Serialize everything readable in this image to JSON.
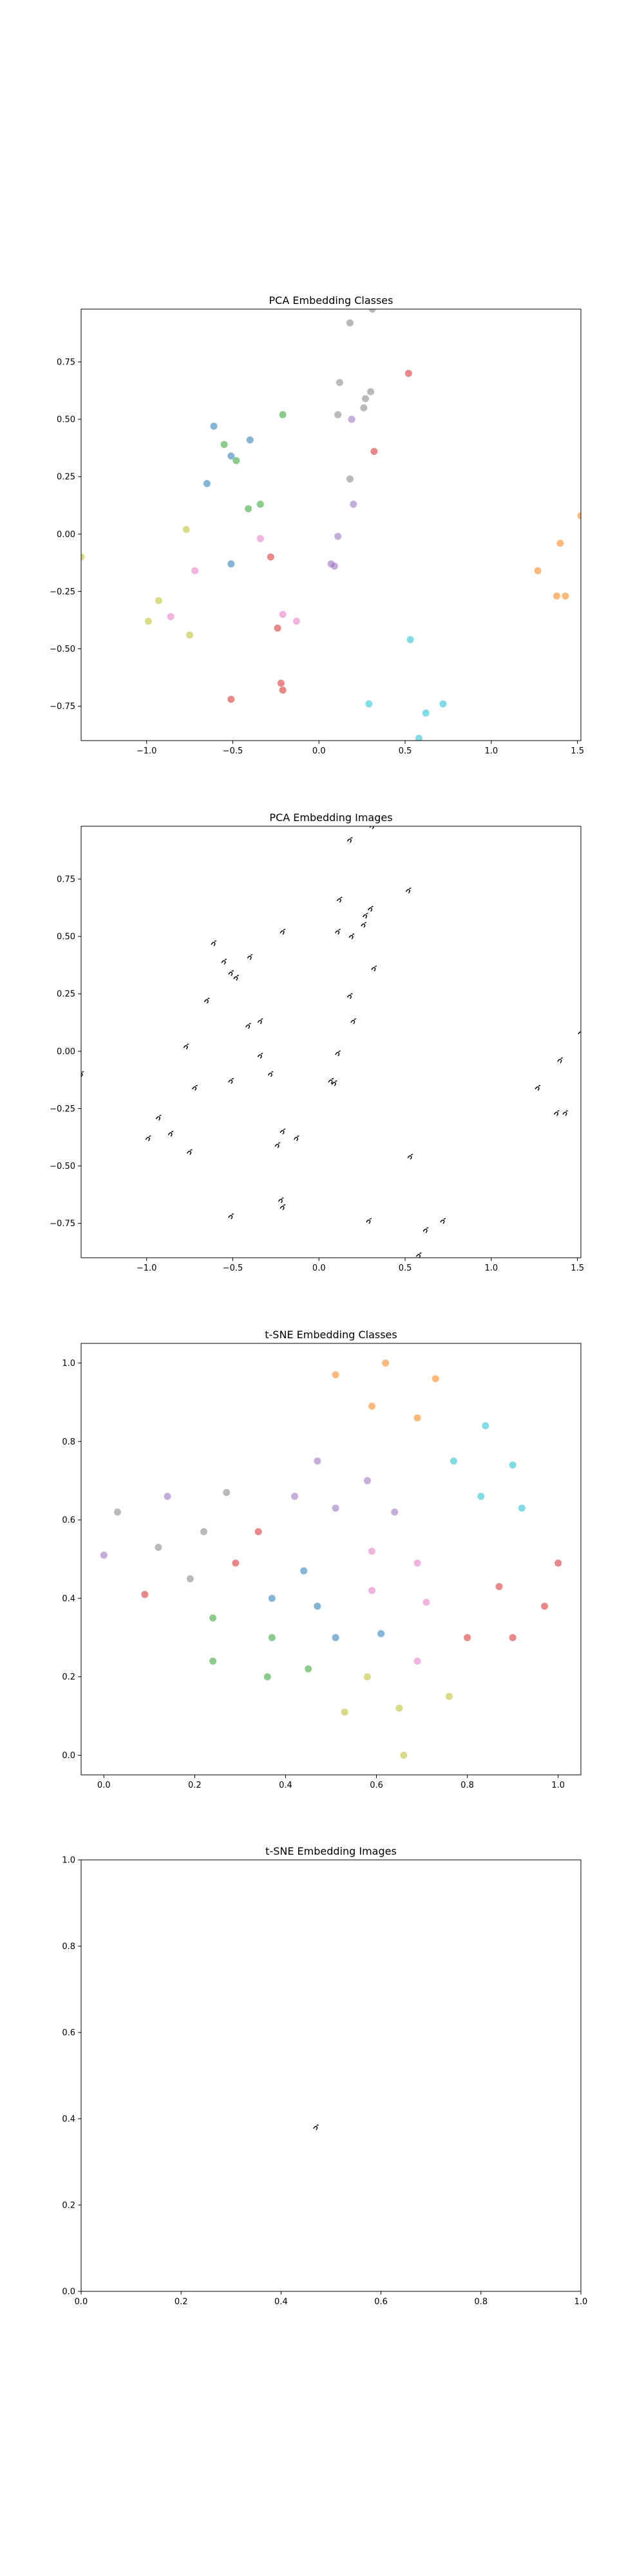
{
  "colors": [
    "#1f77b4",
    "#ff7f0e",
    "#2ca02c",
    "#d62728",
    "#9467bd",
    "#8c564b",
    "#e377c2",
    "#7f7f7f",
    "#bcbd22",
    "#17becf"
  ],
  "chart_data": [
    {
      "type": "scatter",
      "title": "PCA Embedding Classes",
      "xlim": [
        -1.38,
        1.52
      ],
      "ylim": [
        -0.9,
        0.98
      ],
      "xticks": [
        {
          "v": -1.0,
          "label": "−1.0"
        },
        {
          "v": -0.5,
          "label": "−0.5"
        },
        {
          "v": 0.0,
          "label": "0.0"
        },
        {
          "v": 0.5,
          "label": "0.5"
        },
        {
          "v": 1.0,
          "label": "1.0"
        },
        {
          "v": 1.5,
          "label": "1.5"
        }
      ],
      "yticks": [
        {
          "v": -0.75,
          "label": "−0.75"
        },
        {
          "v": -0.5,
          "label": "−0.50"
        },
        {
          "v": -0.25,
          "label": "−0.25"
        },
        {
          "v": 0.0,
          "label": "0.00"
        },
        {
          "v": 0.25,
          "label": "0.25"
        },
        {
          "v": 0.5,
          "label": "0.50"
        },
        {
          "v": 0.75,
          "label": "0.75"
        }
      ],
      "points": [
        {
          "x": 0.18,
          "y": 0.92,
          "c": 7
        },
        {
          "x": 0.31,
          "y": 0.98,
          "c": 7
        },
        {
          "x": 0.12,
          "y": 0.66,
          "c": 7
        },
        {
          "x": 0.52,
          "y": 0.7,
          "c": 3
        },
        {
          "x": 0.3,
          "y": 0.62,
          "c": 7
        },
        {
          "x": 0.27,
          "y": 0.59,
          "c": 7
        },
        {
          "x": 0.26,
          "y": 0.55,
          "c": 7
        },
        {
          "x": 0.11,
          "y": 0.52,
          "c": 7
        },
        {
          "x": 0.19,
          "y": 0.5,
          "c": 4
        },
        {
          "x": -0.21,
          "y": 0.52,
          "c": 2
        },
        {
          "x": -0.61,
          "y": 0.47,
          "c": 0
        },
        {
          "x": -0.4,
          "y": 0.41,
          "c": 0
        },
        {
          "x": -0.55,
          "y": 0.39,
          "c": 2
        },
        {
          "x": -0.51,
          "y": 0.34,
          "c": 0
        },
        {
          "x": -0.48,
          "y": 0.32,
          "c": 2
        },
        {
          "x": 0.32,
          "y": 0.36,
          "c": 3
        },
        {
          "x": 0.18,
          "y": 0.24,
          "c": 7
        },
        {
          "x": -0.65,
          "y": 0.22,
          "c": 0
        },
        {
          "x": -0.41,
          "y": 0.11,
          "c": 2
        },
        {
          "x": -0.34,
          "y": 0.13,
          "c": 2
        },
        {
          "x": 0.2,
          "y": 0.13,
          "c": 4
        },
        {
          "x": -0.77,
          "y": 0.02,
          "c": 8
        },
        {
          "x": -0.34,
          "y": -0.02,
          "c": 6
        },
        {
          "x": 0.11,
          "y": -0.01,
          "c": 4
        },
        {
          "x": -1.38,
          "y": -0.1,
          "c": 8
        },
        {
          "x": -0.51,
          "y": -0.13,
          "c": 0
        },
        {
          "x": -0.28,
          "y": -0.1,
          "c": 3
        },
        {
          "x": 0.07,
          "y": -0.13,
          "c": 4
        },
        {
          "x": 0.09,
          "y": -0.14,
          "c": 4
        },
        {
          "x": -0.72,
          "y": -0.16,
          "c": 6
        },
        {
          "x": -0.13,
          "y": -0.38,
          "c": 6
        },
        {
          "x": -0.21,
          "y": -0.35,
          "c": 6
        },
        {
          "x": -0.93,
          "y": -0.29,
          "c": 8
        },
        {
          "x": -0.86,
          "y": -0.36,
          "c": 6
        },
        {
          "x": -0.99,
          "y": -0.38,
          "c": 8
        },
        {
          "x": -0.24,
          "y": -0.41,
          "c": 3
        },
        {
          "x": -0.75,
          "y": -0.44,
          "c": 8
        },
        {
          "x": 0.53,
          "y": -0.46,
          "c": 9
        },
        {
          "x": -0.22,
          "y": -0.65,
          "c": 3
        },
        {
          "x": -0.21,
          "y": -0.68,
          "c": 3
        },
        {
          "x": -0.51,
          "y": -0.72,
          "c": 3
        },
        {
          "x": 0.29,
          "y": -0.74,
          "c": 9
        },
        {
          "x": 0.62,
          "y": -0.78,
          "c": 9
        },
        {
          "x": 0.72,
          "y": -0.74,
          "c": 9
        },
        {
          "x": 0.58,
          "y": -0.89,
          "c": 9
        },
        {
          "x": 1.52,
          "y": 0.08,
          "c": 1
        },
        {
          "x": 1.4,
          "y": -0.04,
          "c": 1
        },
        {
          "x": 1.27,
          "y": -0.16,
          "c": 1
        },
        {
          "x": 1.38,
          "y": -0.27,
          "c": 1
        },
        {
          "x": 1.43,
          "y": -0.27,
          "c": 1
        }
      ]
    },
    {
      "type": "scatter",
      "title": "PCA Embedding Images",
      "xlim": [
        -1.38,
        1.52
      ],
      "ylim": [
        -0.9,
        0.98
      ],
      "xticks": [
        {
          "v": -1.0,
          "label": "−1.0"
        },
        {
          "v": -0.5,
          "label": "−0.5"
        },
        {
          "v": 0.0,
          "label": "0.0"
        },
        {
          "v": 0.5,
          "label": "0.5"
        },
        {
          "v": 1.0,
          "label": "1.0"
        },
        {
          "v": 1.5,
          "label": "1.5"
        }
      ],
      "yticks": [
        {
          "v": -0.75,
          "label": "−0.75"
        },
        {
          "v": -0.5,
          "label": "−0.50"
        },
        {
          "v": -0.25,
          "label": "−0.25"
        },
        {
          "v": 0.0,
          "label": "0.00"
        },
        {
          "v": 0.25,
          "label": "0.25"
        },
        {
          "v": 0.5,
          "label": "0.50"
        },
        {
          "v": 0.75,
          "label": "0.75"
        }
      ],
      "marker": "glyph",
      "same_points_as": 0
    },
    {
      "type": "scatter",
      "title": "t-SNE Embedding Classes",
      "xlim": [
        -0.05,
        1.05
      ],
      "ylim": [
        -0.05,
        1.05
      ],
      "xticks": [
        {
          "v": 0.0,
          "label": "0.0"
        },
        {
          "v": 0.2,
          "label": "0.2"
        },
        {
          "v": 0.4,
          "label": "0.4"
        },
        {
          "v": 0.6,
          "label": "0.6"
        },
        {
          "v": 0.8,
          "label": "0.8"
        },
        {
          "v": 1.0,
          "label": "1.0"
        }
      ],
      "yticks": [
        {
          "v": 0.0,
          "label": "0.0"
        },
        {
          "v": 0.2,
          "label": "0.2"
        },
        {
          "v": 0.4,
          "label": "0.4"
        },
        {
          "v": 0.6,
          "label": "0.6"
        },
        {
          "v": 0.8,
          "label": "0.8"
        },
        {
          "v": 1.0,
          "label": "1.0"
        }
      ],
      "points": [
        {
          "x": 0.62,
          "y": 1.0,
          "c": 1
        },
        {
          "x": 0.51,
          "y": 0.97,
          "c": 1
        },
        {
          "x": 0.73,
          "y": 0.96,
          "c": 1
        },
        {
          "x": 0.59,
          "y": 0.89,
          "c": 1
        },
        {
          "x": 0.69,
          "y": 0.86,
          "c": 1
        },
        {
          "x": 0.84,
          "y": 0.84,
          "c": 9
        },
        {
          "x": 0.77,
          "y": 0.75,
          "c": 9
        },
        {
          "x": 0.9,
          "y": 0.74,
          "c": 9
        },
        {
          "x": 0.47,
          "y": 0.75,
          "c": 4
        },
        {
          "x": 0.58,
          "y": 0.7,
          "c": 4
        },
        {
          "x": 0.83,
          "y": 0.66,
          "c": 9
        },
        {
          "x": 0.92,
          "y": 0.63,
          "c": 9
        },
        {
          "x": 0.03,
          "y": 0.62,
          "c": 7
        },
        {
          "x": 0.14,
          "y": 0.66,
          "c": 4
        },
        {
          "x": 0.27,
          "y": 0.67,
          "c": 7
        },
        {
          "x": 0.42,
          "y": 0.66,
          "c": 4
        },
        {
          "x": 0.51,
          "y": 0.63,
          "c": 4
        },
        {
          "x": 0.64,
          "y": 0.62,
          "c": 4
        },
        {
          "x": 0.22,
          "y": 0.57,
          "c": 7
        },
        {
          "x": 0.34,
          "y": 0.57,
          "c": 3
        },
        {
          "x": 0.0,
          "y": 0.51,
          "c": 4
        },
        {
          "x": 0.12,
          "y": 0.53,
          "c": 7
        },
        {
          "x": 0.59,
          "y": 0.52,
          "c": 6
        },
        {
          "x": 0.29,
          "y": 0.49,
          "c": 3
        },
        {
          "x": 0.44,
          "y": 0.47,
          "c": 0
        },
        {
          "x": 0.69,
          "y": 0.49,
          "c": 6
        },
        {
          "x": 1.0,
          "y": 0.49,
          "c": 3
        },
        {
          "x": 0.19,
          "y": 0.45,
          "c": 7
        },
        {
          "x": 0.09,
          "y": 0.41,
          "c": 3
        },
        {
          "x": 0.37,
          "y": 0.4,
          "c": 0
        },
        {
          "x": 0.59,
          "y": 0.42,
          "c": 6
        },
        {
          "x": 0.87,
          "y": 0.43,
          "c": 3
        },
        {
          "x": 0.47,
          "y": 0.38,
          "c": 0
        },
        {
          "x": 0.71,
          "y": 0.39,
          "c": 6
        },
        {
          "x": 0.97,
          "y": 0.38,
          "c": 3
        },
        {
          "x": 0.24,
          "y": 0.35,
          "c": 2
        },
        {
          "x": 0.61,
          "y": 0.31,
          "c": 0
        },
        {
          "x": 0.37,
          "y": 0.3,
          "c": 2
        },
        {
          "x": 0.51,
          "y": 0.3,
          "c": 0
        },
        {
          "x": 0.8,
          "y": 0.3,
          "c": 3
        },
        {
          "x": 0.9,
          "y": 0.3,
          "c": 3
        },
        {
          "x": 0.69,
          "y": 0.24,
          "c": 6
        },
        {
          "x": 0.24,
          "y": 0.24,
          "c": 2
        },
        {
          "x": 0.45,
          "y": 0.22,
          "c": 2
        },
        {
          "x": 0.36,
          "y": 0.2,
          "c": 2
        },
        {
          "x": 0.58,
          "y": 0.2,
          "c": 8
        },
        {
          "x": 0.76,
          "y": 0.15,
          "c": 8
        },
        {
          "x": 0.65,
          "y": 0.12,
          "c": 8
        },
        {
          "x": 0.53,
          "y": 0.11,
          "c": 8
        },
        {
          "x": 0.66,
          "y": 0.0,
          "c": 8
        }
      ]
    },
    {
      "type": "scatter",
      "title": "t-SNE Embedding Images",
      "xlim": [
        0.0,
        1.0
      ],
      "ylim": [
        0.0,
        1.0
      ],
      "xticks": [
        {
          "v": 0.0,
          "label": "0.0"
        },
        {
          "v": 0.2,
          "label": "0.2"
        },
        {
          "v": 0.4,
          "label": "0.4"
        },
        {
          "v": 0.6,
          "label": "0.6"
        },
        {
          "v": 0.8,
          "label": "0.8"
        },
        {
          "v": 1.0,
          "label": "1.0"
        }
      ],
      "yticks": [
        {
          "v": 0.0,
          "label": "0.0"
        },
        {
          "v": 0.2,
          "label": "0.2"
        },
        {
          "v": 0.4,
          "label": "0.4"
        },
        {
          "v": 0.6,
          "label": "0.6"
        },
        {
          "v": 0.8,
          "label": "0.8"
        },
        {
          "v": 1.0,
          "label": "1.0"
        }
      ],
      "marker": "glyph",
      "points": [
        {
          "x": 0.47,
          "y": 0.38,
          "c": 7
        }
      ]
    }
  ]
}
